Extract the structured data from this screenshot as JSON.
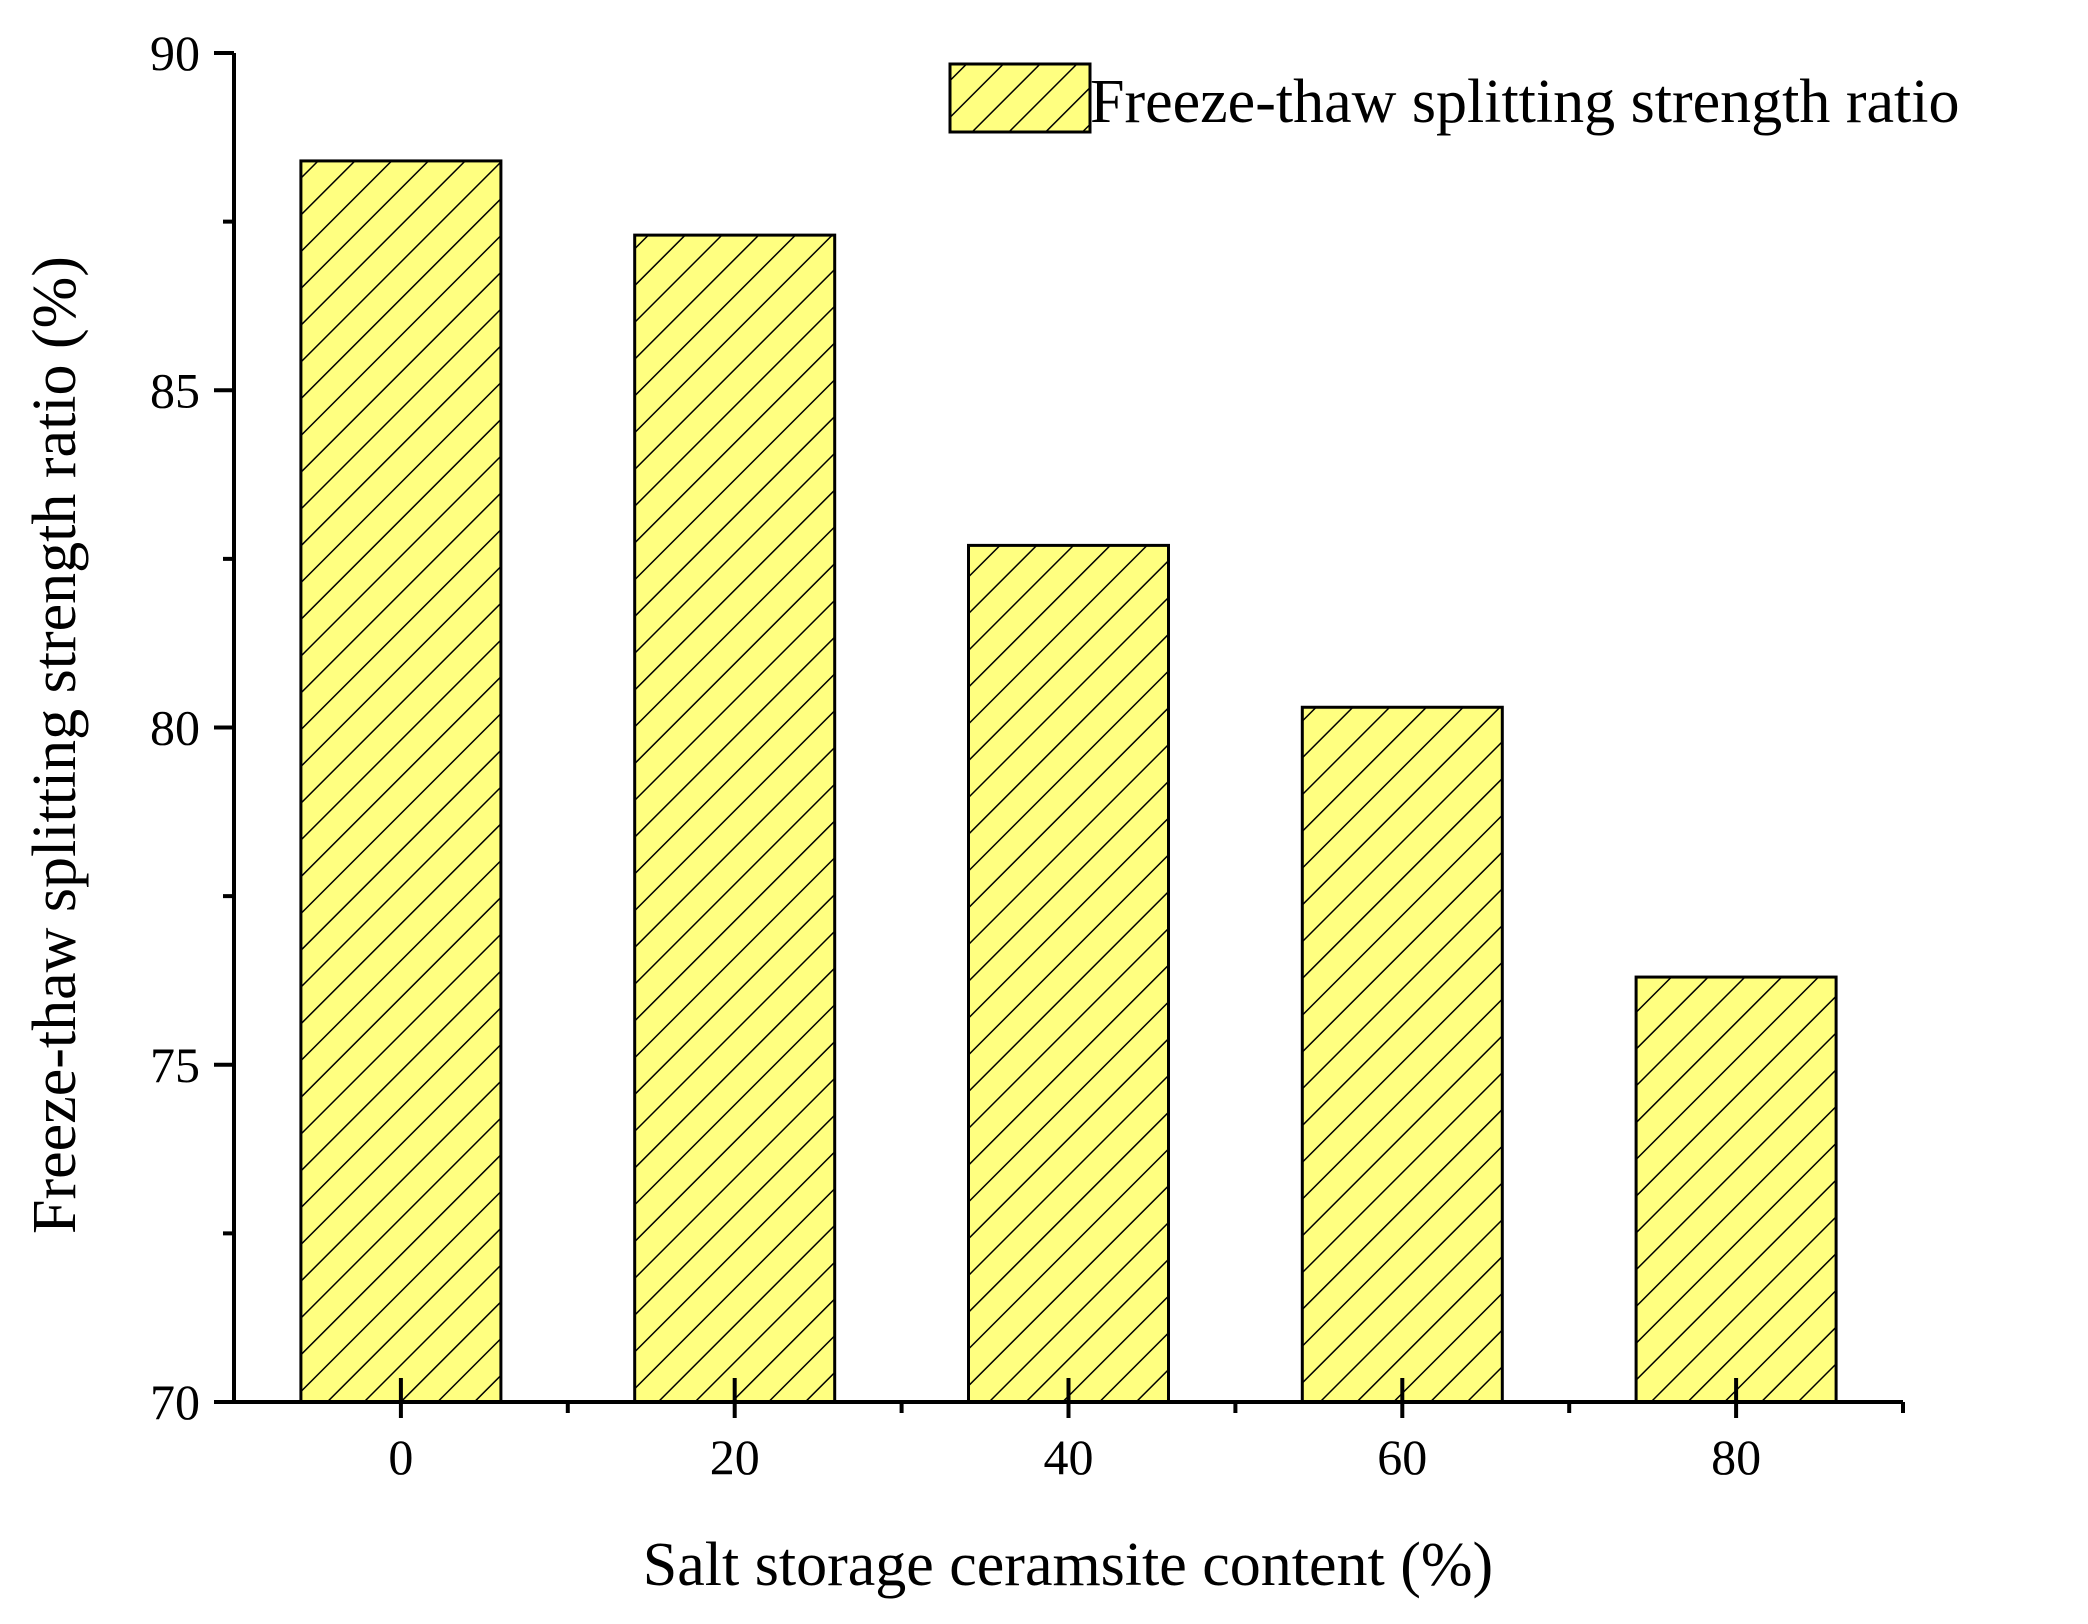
{
  "chart_data": {
    "type": "bar",
    "categories": [
      "0",
      "20",
      "40",
      "60",
      "80"
    ],
    "series": [
      {
        "name": "Freeze-thaw splitting strength ratio",
        "values": [
          88.4,
          87.3,
          82.7,
          80.3,
          76.3
        ]
      }
    ],
    "xlabel": "Salt storage ceramsite content (%)",
    "ylabel": "Freeze-thaw splitting strength ratio (%)",
    "ylim": [
      70,
      90
    ],
    "yticks": [
      "70",
      "75",
      "80",
      "85",
      "90"
    ],
    "grid": false,
    "legend_position": "top-right",
    "bar_fill": "#ffff80",
    "bar_edge": "#000000",
    "bar_hatch": "diagonal"
  }
}
